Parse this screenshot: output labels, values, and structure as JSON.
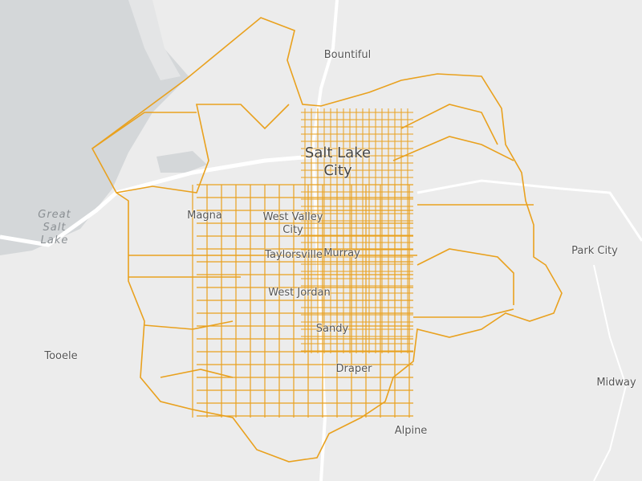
{
  "map": {
    "colors": {
      "background": "#ececec",
      "water": "#d4d7d9",
      "road": "#ffffff",
      "boundary": "#e9a11e"
    },
    "labels": {
      "bountiful": "Bountiful",
      "salt_lake_city": "Salt Lake City",
      "magna": "Magna",
      "west_valley_city": "West Valley City",
      "taylorsville": "Taylorsville",
      "murray": "Murray",
      "west_jordan": "West Jordan",
      "sandy": "Sandy",
      "draper": "Draper",
      "alpine": "Alpine",
      "park_city": "Park City",
      "midway": "Midway",
      "tooele": "Tooele",
      "great_salt_lake": "Great Salt Lake"
    }
  }
}
